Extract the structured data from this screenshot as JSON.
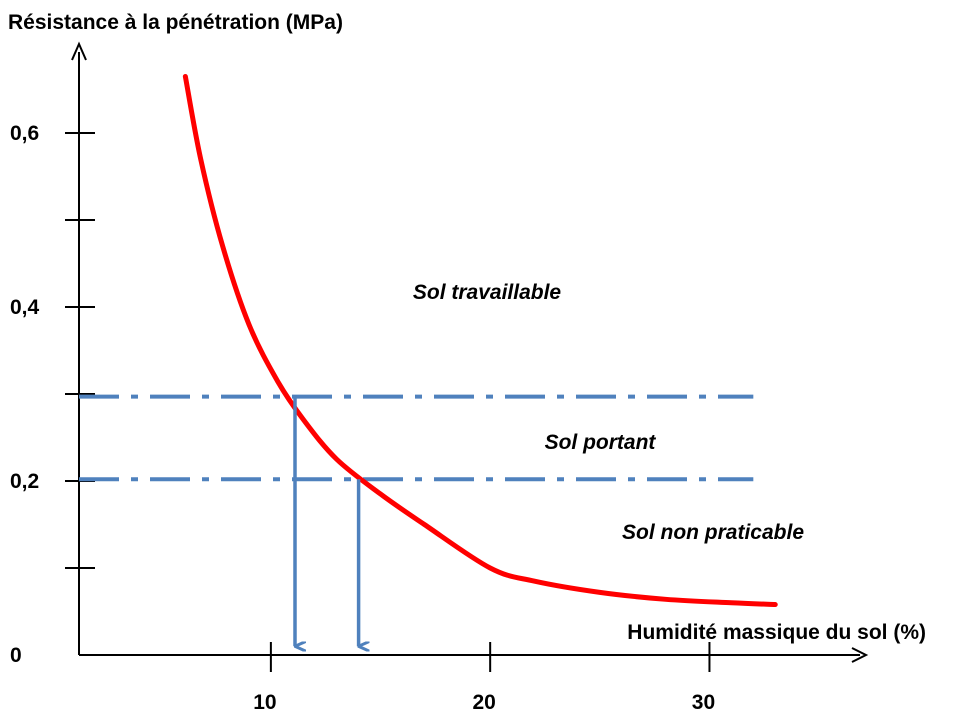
{
  "chart_data": {
    "type": "line",
    "title": "",
    "ylabel": "Résistance à la pénétration (MPa)",
    "xlabel": "Humidité massique du sol (%)",
    "xlim": [
      1.25,
      36.5
    ],
    "ylim": [
      0,
      0.7
    ],
    "x_ticks": [
      10,
      20,
      30
    ],
    "x_tick_labels": [
      "10",
      "20",
      "30"
    ],
    "y_ticks": [
      0,
      0.1,
      0.2,
      0.3,
      0.4,
      0.5,
      0.6
    ],
    "y_tick_labels": [
      "0",
      "",
      "0,2",
      "",
      "0,4",
      "",
      "0,6"
    ],
    "grid": false,
    "legend": "none",
    "series": [
      {
        "color": "#ff0000",
        "points": [
          [
            6.1,
            0.665
          ],
          [
            6.8,
            0.57
          ],
          [
            7.8,
            0.47
          ],
          [
            9.0,
            0.38
          ],
          [
            10.3,
            0.315
          ],
          [
            11.5,
            0.27
          ],
          [
            13.0,
            0.225
          ],
          [
            15.0,
            0.185
          ],
          [
            17.0,
            0.15
          ],
          [
            20.0,
            0.1
          ],
          [
            22.0,
            0.085
          ],
          [
            25.0,
            0.072
          ],
          [
            28.0,
            0.064
          ],
          [
            31.0,
            0.06
          ],
          [
            33.0,
            0.058
          ]
        ]
      }
    ],
    "threshold_lines": [
      {
        "y": 0.297,
        "x_range": [
          1.25,
          32.0
        ],
        "style": "dash-dot",
        "color": "#4f81bd"
      },
      {
        "y": 0.202,
        "x_range": [
          1.25,
          32.0
        ],
        "style": "dash-dot",
        "color": "#4f81bd"
      }
    ],
    "drop_arrows": [
      {
        "x": 11.1,
        "from_y": 0.297,
        "to_y": 0.01,
        "color": "#4f81bd"
      },
      {
        "x": 14.0,
        "from_y": 0.202,
        "to_y": 0.01,
        "color": "#4f81bd"
      }
    ],
    "zones": [
      {
        "text": "Sol travaillable",
        "x": 18.2,
        "y": 0.42
      },
      {
        "text": "Sol portant",
        "x": 18.7,
        "y": 0.245
      },
      {
        "text": "Sol non praticable",
        "x": 25.4,
        "y": 0.145
      }
    ]
  }
}
